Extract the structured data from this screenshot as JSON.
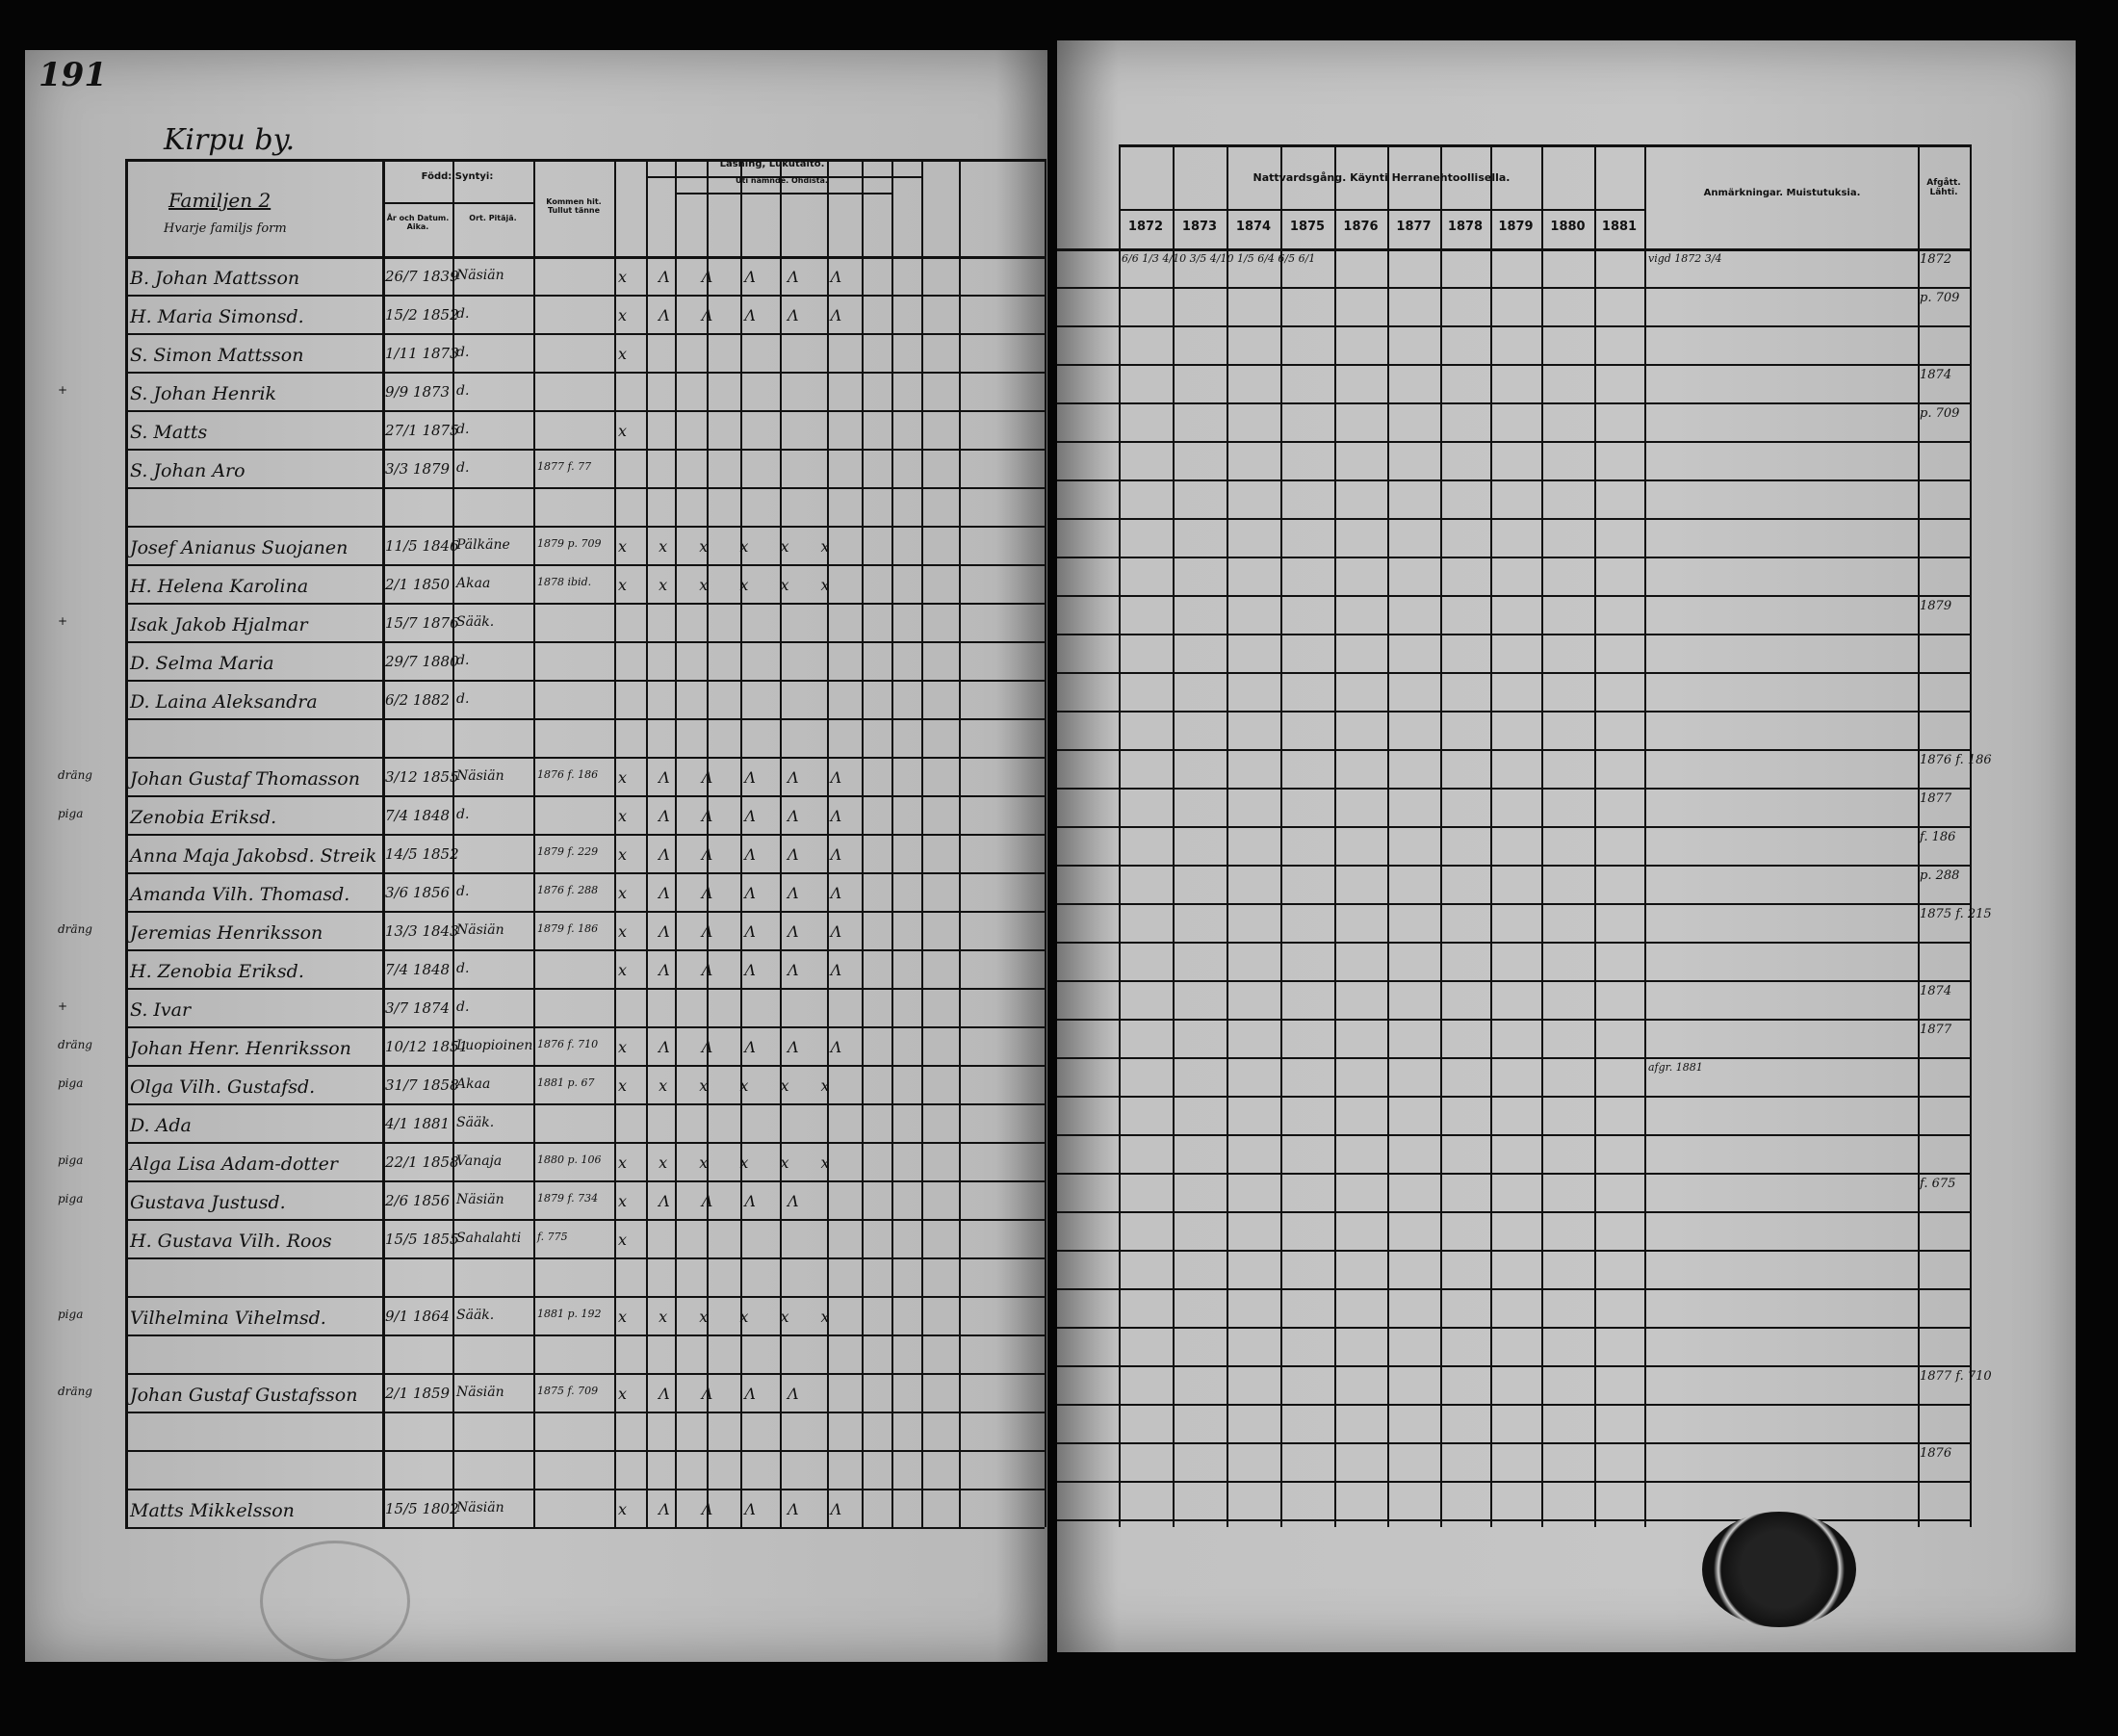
{
  "folio": "191",
  "village": "Kirpu by.",
  "left_headers": {
    "family": "Familjen 2",
    "family_sub": "Hvarje familjs form",
    "born": "Född: Syntyi:",
    "born_date": "År och Datum. Aika.",
    "born_parish": "Ort. Pitäjä.",
    "came": "Kommen hit. Tullut tänne",
    "reading": "Läsning, Lukutaito.",
    "reading_sub": "Uti nämnde. Ohdista."
  },
  "right_headers": {
    "communion": "Nattvardsgång. Käynti Herranehtoollisella.",
    "years": [
      "1872",
      "1873",
      "1874",
      "1875",
      "1876",
      "1877",
      "1878",
      "1879",
      "1880",
      "1881"
    ],
    "remarks": "Anmärkningar. Muistutuksia.",
    "departed": "Afgått. Lähti."
  },
  "rows": [
    {
      "mark": "",
      "name": "B. Johan Mattsson",
      "born": "26/7 1839",
      "parish": "Näsiän",
      "came": "",
      "reading": "x Λ Λ Λ Λ Λ",
      "comm": "6/6  1/3 4/10  3/5 4/10  1/5  6/4  6/5  6/1",
      "remark": "vigd 1872 3/4",
      "left": "1872"
    },
    {
      "mark": "",
      "name": "H. Maria Simonsd.",
      "born": "15/2 1852",
      "parish": "d.",
      "came": "",
      "reading": "x Λ Λ Λ Λ Λ",
      "comm": "",
      "remark": "",
      "left": "p. 709"
    },
    {
      "mark": "",
      "name": "S. Simon Mattsson",
      "born": "1/11 1873",
      "parish": "d.",
      "came": "",
      "reading": "x",
      "comm": "",
      "remark": "",
      "left": ""
    },
    {
      "mark": "+",
      "name": "S. Johan Henrik",
      "born": "9/9 1873",
      "parish": "d.",
      "came": "",
      "reading": "",
      "comm": "",
      "remark": "",
      "left": "1874"
    },
    {
      "mark": "",
      "name": "S. Matts",
      "born": "27/1 1875",
      "parish": "d.",
      "came": "",
      "reading": "x",
      "comm": "",
      "remark": "",
      "left": "p. 709"
    },
    {
      "mark": "",
      "name": "S. Johan Aro",
      "born": "3/3 1879",
      "parish": "d.",
      "came": "1877 f. 77",
      "reading": "",
      "comm": "",
      "remark": "",
      "left": ""
    },
    {
      "mark": "",
      "name": "",
      "born": "",
      "parish": "",
      "came": "",
      "reading": "",
      "comm": "",
      "remark": "",
      "left": ""
    },
    {
      "mark": "",
      "name": "Josef Anianus Suojanen",
      "born": "11/5 1846",
      "parish": "Pälkäne",
      "came": "1879 p. 709",
      "reading": "x x x x x x",
      "comm": "",
      "remark": "",
      "left": ""
    },
    {
      "mark": "",
      "name": "H. Helena Karolina",
      "born": "2/1 1850",
      "parish": "Akaa",
      "came": "1878 ibid.",
      "reading": "x x x x x x",
      "comm": "",
      "remark": "",
      "left": ""
    },
    {
      "mark": "+",
      "name": "Isak Jakob Hjalmar",
      "born": "15/7 1876",
      "parish": "Sääk.",
      "came": "",
      "reading": "",
      "comm": "",
      "remark": "",
      "left": "1879"
    },
    {
      "mark": "",
      "name": "D. Selma Maria",
      "born": "29/7 1880",
      "parish": "d.",
      "came": "",
      "reading": "",
      "comm": "",
      "remark": "",
      "left": ""
    },
    {
      "mark": "",
      "name": "D. Laina Aleksandra",
      "born": "6/2 1882",
      "parish": "d.",
      "came": "",
      "reading": "",
      "comm": "",
      "remark": "",
      "left": ""
    },
    {
      "mark": "",
      "name": "",
      "born": "",
      "parish": "",
      "came": "",
      "reading": "",
      "comm": "",
      "remark": "",
      "left": ""
    },
    {
      "mark": "dräng",
      "name": "Johan Gustaf Thomasson",
      "born": "3/12 1855",
      "parish": "Näsiän",
      "came": "1876 f. 186",
      "reading": "x Λ Λ Λ Λ Λ",
      "comm": "",
      "remark": "",
      "left": "1876 f. 186"
    },
    {
      "mark": "piga",
      "name": "Zenobia Eriksd.",
      "born": "7/4 1848",
      "parish": "d.",
      "came": "",
      "reading": "x Λ Λ Λ Λ Λ",
      "comm": "",
      "remark": "",
      "left": "1877"
    },
    {
      "mark": "",
      "name": "Anna Maja Jakobsd. Streik",
      "born": "14/5 1852",
      "parish": "",
      "came": "1879 f. 229",
      "reading": "x Λ Λ Λ Λ Λ",
      "comm": "",
      "remark": "",
      "left": "f. 186"
    },
    {
      "mark": "",
      "name": "Amanda Vilh. Thomasd.",
      "born": "3/6 1856",
      "parish": "d.",
      "came": "1876 f. 288",
      "reading": "x Λ Λ Λ Λ Λ",
      "comm": "",
      "remark": "",
      "left": "p. 288"
    },
    {
      "mark": "dräng",
      "name": "Jeremias Henriksson",
      "born": "13/3 1843",
      "parish": "Näsiän",
      "came": "1879 f. 186",
      "reading": "x Λ Λ Λ Λ Λ",
      "comm": "",
      "remark": "",
      "left": "1875 f. 215"
    },
    {
      "mark": "",
      "name": "H. Zenobia Eriksd.",
      "born": "7/4 1848",
      "parish": "d.",
      "came": "",
      "reading": "x Λ Λ Λ Λ Λ",
      "comm": "",
      "remark": "",
      "left": ""
    },
    {
      "mark": "+",
      "name": "S. Ivar",
      "born": "3/7 1874",
      "parish": "d.",
      "came": "",
      "reading": "",
      "comm": "",
      "remark": "",
      "left": "1874"
    },
    {
      "mark": "dräng",
      "name": "Johan Henr. Henriksson",
      "born": "10/12 1851",
      "parish": "Luopioinen",
      "came": "1876 f. 710",
      "reading": "x Λ Λ Λ Λ Λ",
      "comm": "",
      "remark": "",
      "left": "1877"
    },
    {
      "mark": "piga",
      "name": "Olga Vilh. Gustafsd.",
      "born": "31/7 1858",
      "parish": "Akaa",
      "came": "1881 p. 67",
      "reading": "x x x x x x",
      "comm": "",
      "remark": "afgr. 1881",
      "left": ""
    },
    {
      "mark": "",
      "name": "D. Ada",
      "born": "4/1 1881",
      "parish": "Sääk.",
      "came": "",
      "reading": "",
      "comm": "",
      "remark": "",
      "left": ""
    },
    {
      "mark": "piga",
      "name": "Alga Lisa Adam-dotter",
      "born": "22/1 1858",
      "parish": "Vanaja",
      "came": "1880 p. 106",
      "reading": "x x x x x x",
      "comm": "",
      "remark": "",
      "left": ""
    },
    {
      "mark": "piga",
      "name": "Gustava Justusd.",
      "born": "2/6 1856",
      "parish": "Näsiän",
      "came": "1879 f. 734",
      "reading": "x Λ Λ Λ Λ",
      "comm": "",
      "remark": "",
      "left": "f. 675"
    },
    {
      "mark": "",
      "name": "H. Gustava Vilh. Roos",
      "born": "15/5 1855",
      "parish": "Sahalahti",
      "came": "f. 775",
      "reading": "x",
      "comm": "",
      "remark": "",
      "left": ""
    },
    {
      "mark": "",
      "name": "",
      "born": "",
      "parish": "",
      "came": "",
      "reading": "",
      "comm": "",
      "remark": "",
      "left": ""
    },
    {
      "mark": "piga",
      "name": "Vilhelmina Vihelmsd.",
      "born": "9/1 1864",
      "parish": "Sääk.",
      "came": "1881 p. 192",
      "reading": "x x x x x x",
      "comm": "",
      "remark": "",
      "left": ""
    },
    {
      "mark": "",
      "name": "",
      "born": "",
      "parish": "",
      "came": "",
      "reading": "",
      "comm": "",
      "remark": "",
      "left": ""
    },
    {
      "mark": "dräng",
      "name": "Johan Gustaf Gustafsson",
      "born": "2/1 1859",
      "parish": "Näsiän",
      "came": "1875 f. 709",
      "reading": "x Λ Λ Λ Λ",
      "comm": "",
      "remark": "",
      "left": "1877 f. 710"
    },
    {
      "mark": "",
      "name": "",
      "born": "",
      "parish": "",
      "came": "",
      "reading": "",
      "comm": "",
      "remark": "",
      "left": ""
    },
    {
      "mark": "",
      "name": "",
      "born": "",
      "parish": "",
      "came": "",
      "reading": "",
      "comm": "",
      "remark": "",
      "left": "1876"
    },
    {
      "mark": "",
      "name": "Matts Mikkelsson",
      "born": "15/5 1802",
      "parish": "Näsiän",
      "came": "",
      "reading": "x Λ Λ Λ Λ Λ",
      "comm": "",
      "remark": "",
      "left": ""
    }
  ],
  "colors": {
    "paper": "#c2c2c2",
    "ink": "#111111",
    "background": "#050505"
  }
}
